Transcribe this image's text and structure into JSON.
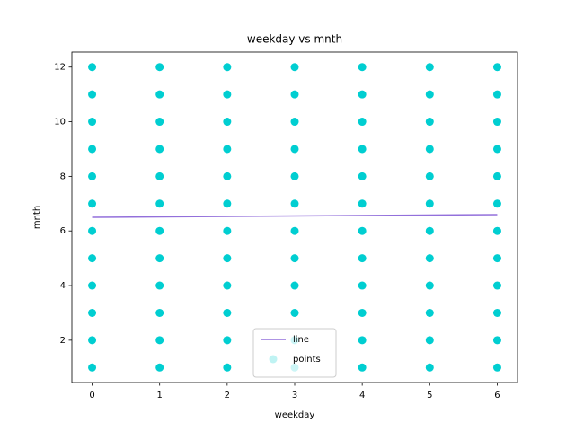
{
  "chart_data": {
    "type": "scatter",
    "title": "weekday vs mnth",
    "x_label": "weekday",
    "y_label": "mnth",
    "xlim": [
      -0.3,
      6.3
    ],
    "ylim": [
      0.45,
      12.55
    ],
    "xticks": [
      0,
      1,
      2,
      3,
      4,
      5,
      6
    ],
    "yticks": [
      2,
      4,
      6,
      8,
      10,
      12
    ],
    "legend": "lower center",
    "series": [
      {
        "name": "line",
        "type": "line",
        "color": "#9370db",
        "x": [
          0,
          6
        ],
        "values": [
          6.5,
          6.6
        ]
      },
      {
        "name": "points",
        "type": "scatter",
        "color": "#00ced1",
        "x": [
          0,
          0,
          0,
          0,
          0,
          0,
          0,
          0,
          0,
          0,
          0,
          0,
          1,
          1,
          1,
          1,
          1,
          1,
          1,
          1,
          1,
          1,
          1,
          1,
          2,
          2,
          2,
          2,
          2,
          2,
          2,
          2,
          2,
          2,
          2,
          2,
          3,
          3,
          3,
          3,
          3,
          3,
          3,
          3,
          3,
          3,
          3,
          3,
          4,
          4,
          4,
          4,
          4,
          4,
          4,
          4,
          4,
          4,
          4,
          4,
          5,
          5,
          5,
          5,
          5,
          5,
          5,
          5,
          5,
          5,
          5,
          5,
          6,
          6,
          6,
          6,
          6,
          6,
          6,
          6,
          6,
          6,
          6,
          6
        ],
        "values": [
          1,
          2,
          3,
          4,
          5,
          6,
          7,
          8,
          9,
          10,
          11,
          12,
          1,
          2,
          3,
          4,
          5,
          6,
          7,
          8,
          9,
          10,
          11,
          12,
          1,
          2,
          3,
          4,
          5,
          6,
          7,
          8,
          9,
          10,
          11,
          12,
          1,
          2,
          3,
          4,
          5,
          6,
          7,
          8,
          9,
          10,
          11,
          12,
          1,
          2,
          3,
          4,
          5,
          6,
          7,
          8,
          9,
          10,
          11,
          12,
          1,
          2,
          3,
          4,
          5,
          6,
          7,
          8,
          9,
          10,
          11,
          12,
          1,
          2,
          3,
          4,
          5,
          6,
          7,
          8,
          9,
          10,
          11,
          12
        ]
      }
    ]
  }
}
